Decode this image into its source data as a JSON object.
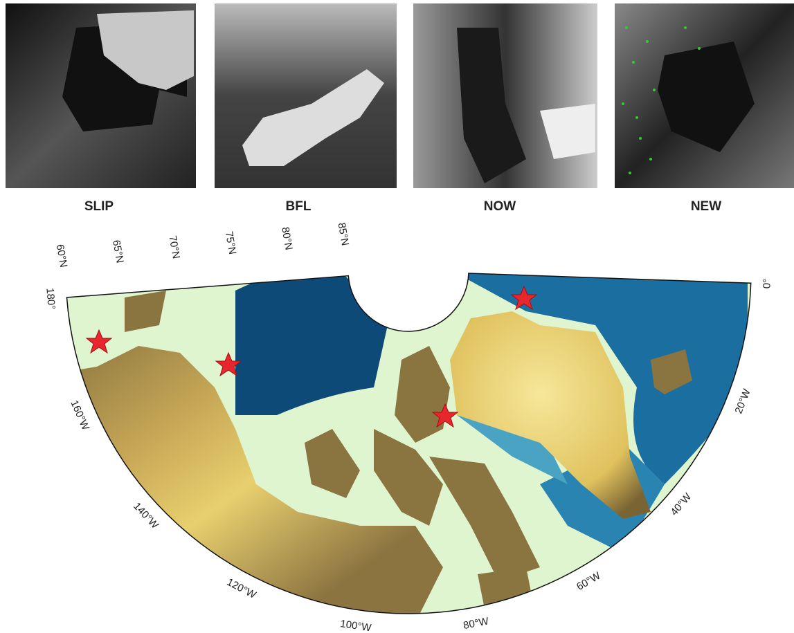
{
  "panels": [
    {
      "label": "SLIP"
    },
    {
      "label": "BFL"
    },
    {
      "label": "NOW"
    },
    {
      "label": "NEW"
    }
  ],
  "map": {
    "latitude_labels": [
      "60°N",
      "65°N",
      "70°N",
      "75°N",
      "80°N",
      "85°N"
    ],
    "longitude_labels": [
      "180°",
      "160°W",
      "140°W",
      "120°W",
      "100°W",
      "80°W",
      "60°W",
      "40°W",
      "20°W",
      "0°"
    ]
  }
}
